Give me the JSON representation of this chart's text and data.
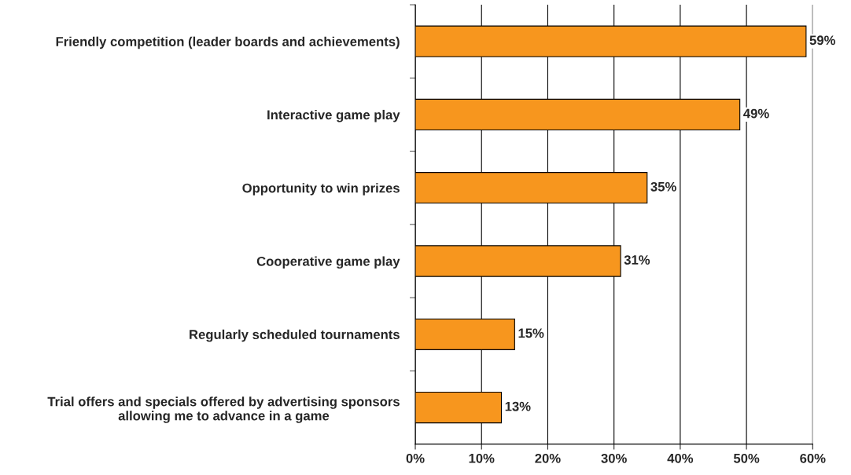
{
  "chart_data": {
    "type": "bar",
    "orientation": "horizontal",
    "categories": [
      "Friendly competition (leader boards and achievements)",
      "Interactive game play",
      "Opportunity to win prizes",
      "Cooperative game play",
      "Regularly scheduled tournaments",
      "Trial offers and specials offered by advertising sponsors\nallowing me to advance in a game"
    ],
    "values": [
      59,
      49,
      35,
      31,
      15,
      13
    ],
    "value_labels": [
      "59%",
      "49%",
      "35%",
      "31%",
      "15%",
      "13%"
    ],
    "color": "#f7961e",
    "xlim": [
      0,
      60
    ],
    "xticks": [
      {
        "value": 0,
        "label": "0%"
      },
      {
        "value": 10,
        "label": "10%"
      },
      {
        "value": 20,
        "label": "20%"
      },
      {
        "value": 30,
        "label": "30%"
      },
      {
        "value": 40,
        "label": "40%"
      },
      {
        "value": 50,
        "label": "50%"
      },
      {
        "value": 60,
        "label": "60%"
      }
    ],
    "grid": "x"
  }
}
